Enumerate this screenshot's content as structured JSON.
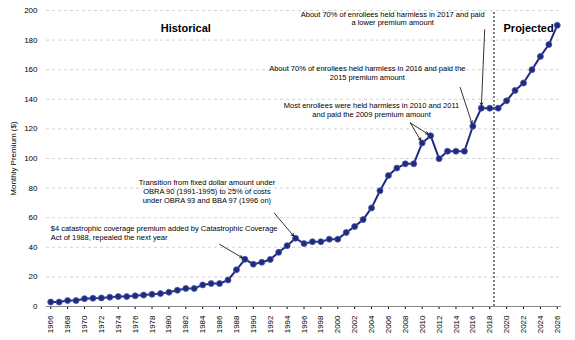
{
  "chart_data": {
    "type": "line",
    "y_label": "Monthly Premium ($)",
    "x": [
      1966,
      1967,
      1968,
      1969,
      1970,
      1971,
      1972,
      1973,
      1974,
      1975,
      1976,
      1977,
      1978,
      1979,
      1980,
      1981,
      1982,
      1983,
      1984,
      1985,
      1986,
      1987,
      1988,
      1989,
      1990,
      1991,
      1992,
      1993,
      1994,
      1995,
      1996,
      1997,
      1998,
      1999,
      2000,
      2001,
      2002,
      2003,
      2004,
      2005,
      2006,
      2007,
      2008,
      2009,
      2010,
      2011,
      2012,
      2013,
      2014,
      2015,
      2016,
      2017,
      2018,
      2019,
      2020,
      2021,
      2022,
      2023,
      2024,
      2025,
      2026
    ],
    "values": [
      3.0,
      3.0,
      4.0,
      4.0,
      5.3,
      5.6,
      5.8,
      6.3,
      6.7,
      6.7,
      7.2,
      7.7,
      8.2,
      8.7,
      9.6,
      11.0,
      12.2,
      12.2,
      14.6,
      15.5,
      15.5,
      17.9,
      24.8,
      31.9,
      28.6,
      29.9,
      31.8,
      36.6,
      41.1,
      46.1,
      42.5,
      43.8,
      43.8,
      45.5,
      45.5,
      50.0,
      54.0,
      58.7,
      66.6,
      78.2,
      88.5,
      93.5,
      96.4,
      96.4,
      110.5,
      115.4,
      99.9,
      104.9,
      104.9,
      104.9,
      121.8,
      134.0,
      134.0,
      134.0,
      139,
      146,
      151,
      160,
      169,
      177,
      190
    ],
    "color": "#1f2a7c",
    "marker": "circle",
    "line_style": "solid",
    "xlim": [
      1965.5,
      2026.5
    ],
    "xticks": [
      1966,
      1968,
      1970,
      1972,
      1974,
      1976,
      1978,
      1980,
      1982,
      1984,
      1986,
      1988,
      1990,
      1992,
      1994,
      1996,
      1998,
      2000,
      2002,
      2004,
      2006,
      2008,
      2010,
      2012,
      2014,
      2016,
      2018,
      2020,
      2022,
      2024,
      2026
    ],
    "ylim": [
      0,
      200
    ],
    "yticks": [
      0,
      20,
      40,
      60,
      80,
      100,
      120,
      140,
      160,
      180,
      200
    ],
    "grid": true,
    "regions": {
      "divider": 2018.5,
      "labels": [
        "Historical",
        "Projected"
      ]
    },
    "annotations": [
      {
        "text": "$4 catastrophic coverage premium added by Catastrophic Coverage\nAct of 1988, repealed the next year",
        "targets": [
          1989
        ]
      },
      {
        "text": "Transition from fixed dollar amount under\nOBRA 90 (1991-1995) to 25% of costs\nunder OBRA 93 and BBA 97 (1996 on)",
        "targets": [
          1995
        ]
      },
      {
        "text": "Most enrollees were held harmless in 2010 and 2011\nand paid the 2009 premium amount",
        "targets": [
          2010,
          2011
        ]
      },
      {
        "text": "About 70% of enrollees held harmless in 2016 and paid the\n2015 premium amount",
        "targets": [
          2016
        ]
      },
      {
        "text": "About 70% of enrollees held harmless in 2017 and paid\na lower premium amount",
        "targets": [
          2017
        ]
      }
    ]
  }
}
